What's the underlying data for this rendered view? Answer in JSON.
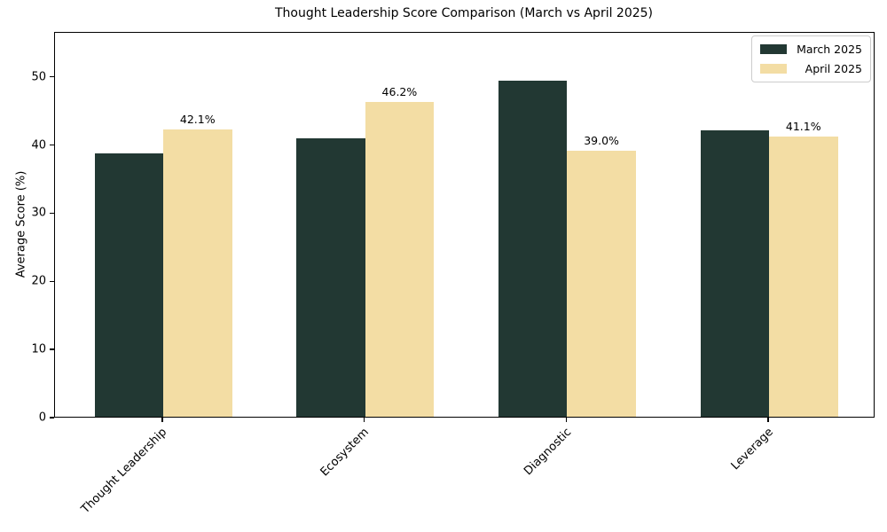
{
  "title": "Thought Leadership Score Comparison (March vs April 2025)",
  "y_axis": {
    "label": "Average Score (%)",
    "tick_labels": [
      "0",
      "10",
      "20",
      "30",
      "40",
      "50"
    ]
  },
  "x_axis": {
    "tick_labels": [
      "Thought Leadership",
      "Ecosystem",
      "Diagnostic",
      "Leverage"
    ]
  },
  "legend": {
    "entries": [
      "March 2025",
      "April 2025"
    ]
  },
  "bar_annotations": [
    "42.1%",
    "46.2%",
    "39.0%",
    "41.1%"
  ],
  "colors": {
    "march_bar": "#223833",
    "april_bar": "#f3dda4",
    "axis": "#000000",
    "legend_border": "#cccccc",
    "background": "#ffffff"
  },
  "chart_data": {
    "type": "bar",
    "title": "Thought Leadership Score Comparison (March vs April 2025)",
    "xlabel": "",
    "ylabel": "Average Score (%)",
    "categories": [
      "Thought Leadership",
      "Ecosystem",
      "Diagnostic",
      "Leverage"
    ],
    "series": [
      {
        "name": "March 2025",
        "color": "#223833",
        "values": [
          38.7,
          40.8,
          49.3,
          42.0
        ],
        "value_labels": null
      },
      {
        "name": "April 2025",
        "color": "#f3dda4",
        "values": [
          42.1,
          46.2,
          39.0,
          41.1
        ],
        "value_labels": [
          "42.1%",
          "46.2%",
          "39.0%",
          "41.1%"
        ]
      }
    ],
    "ylim": [
      0,
      56.6
    ],
    "yticks": [
      0,
      10,
      20,
      30,
      40,
      50
    ],
    "grid": false,
    "legend_position": "upper right",
    "xtick_rotation_deg": 45,
    "notes": "Only April 2025 bars carry percentage value labels"
  }
}
